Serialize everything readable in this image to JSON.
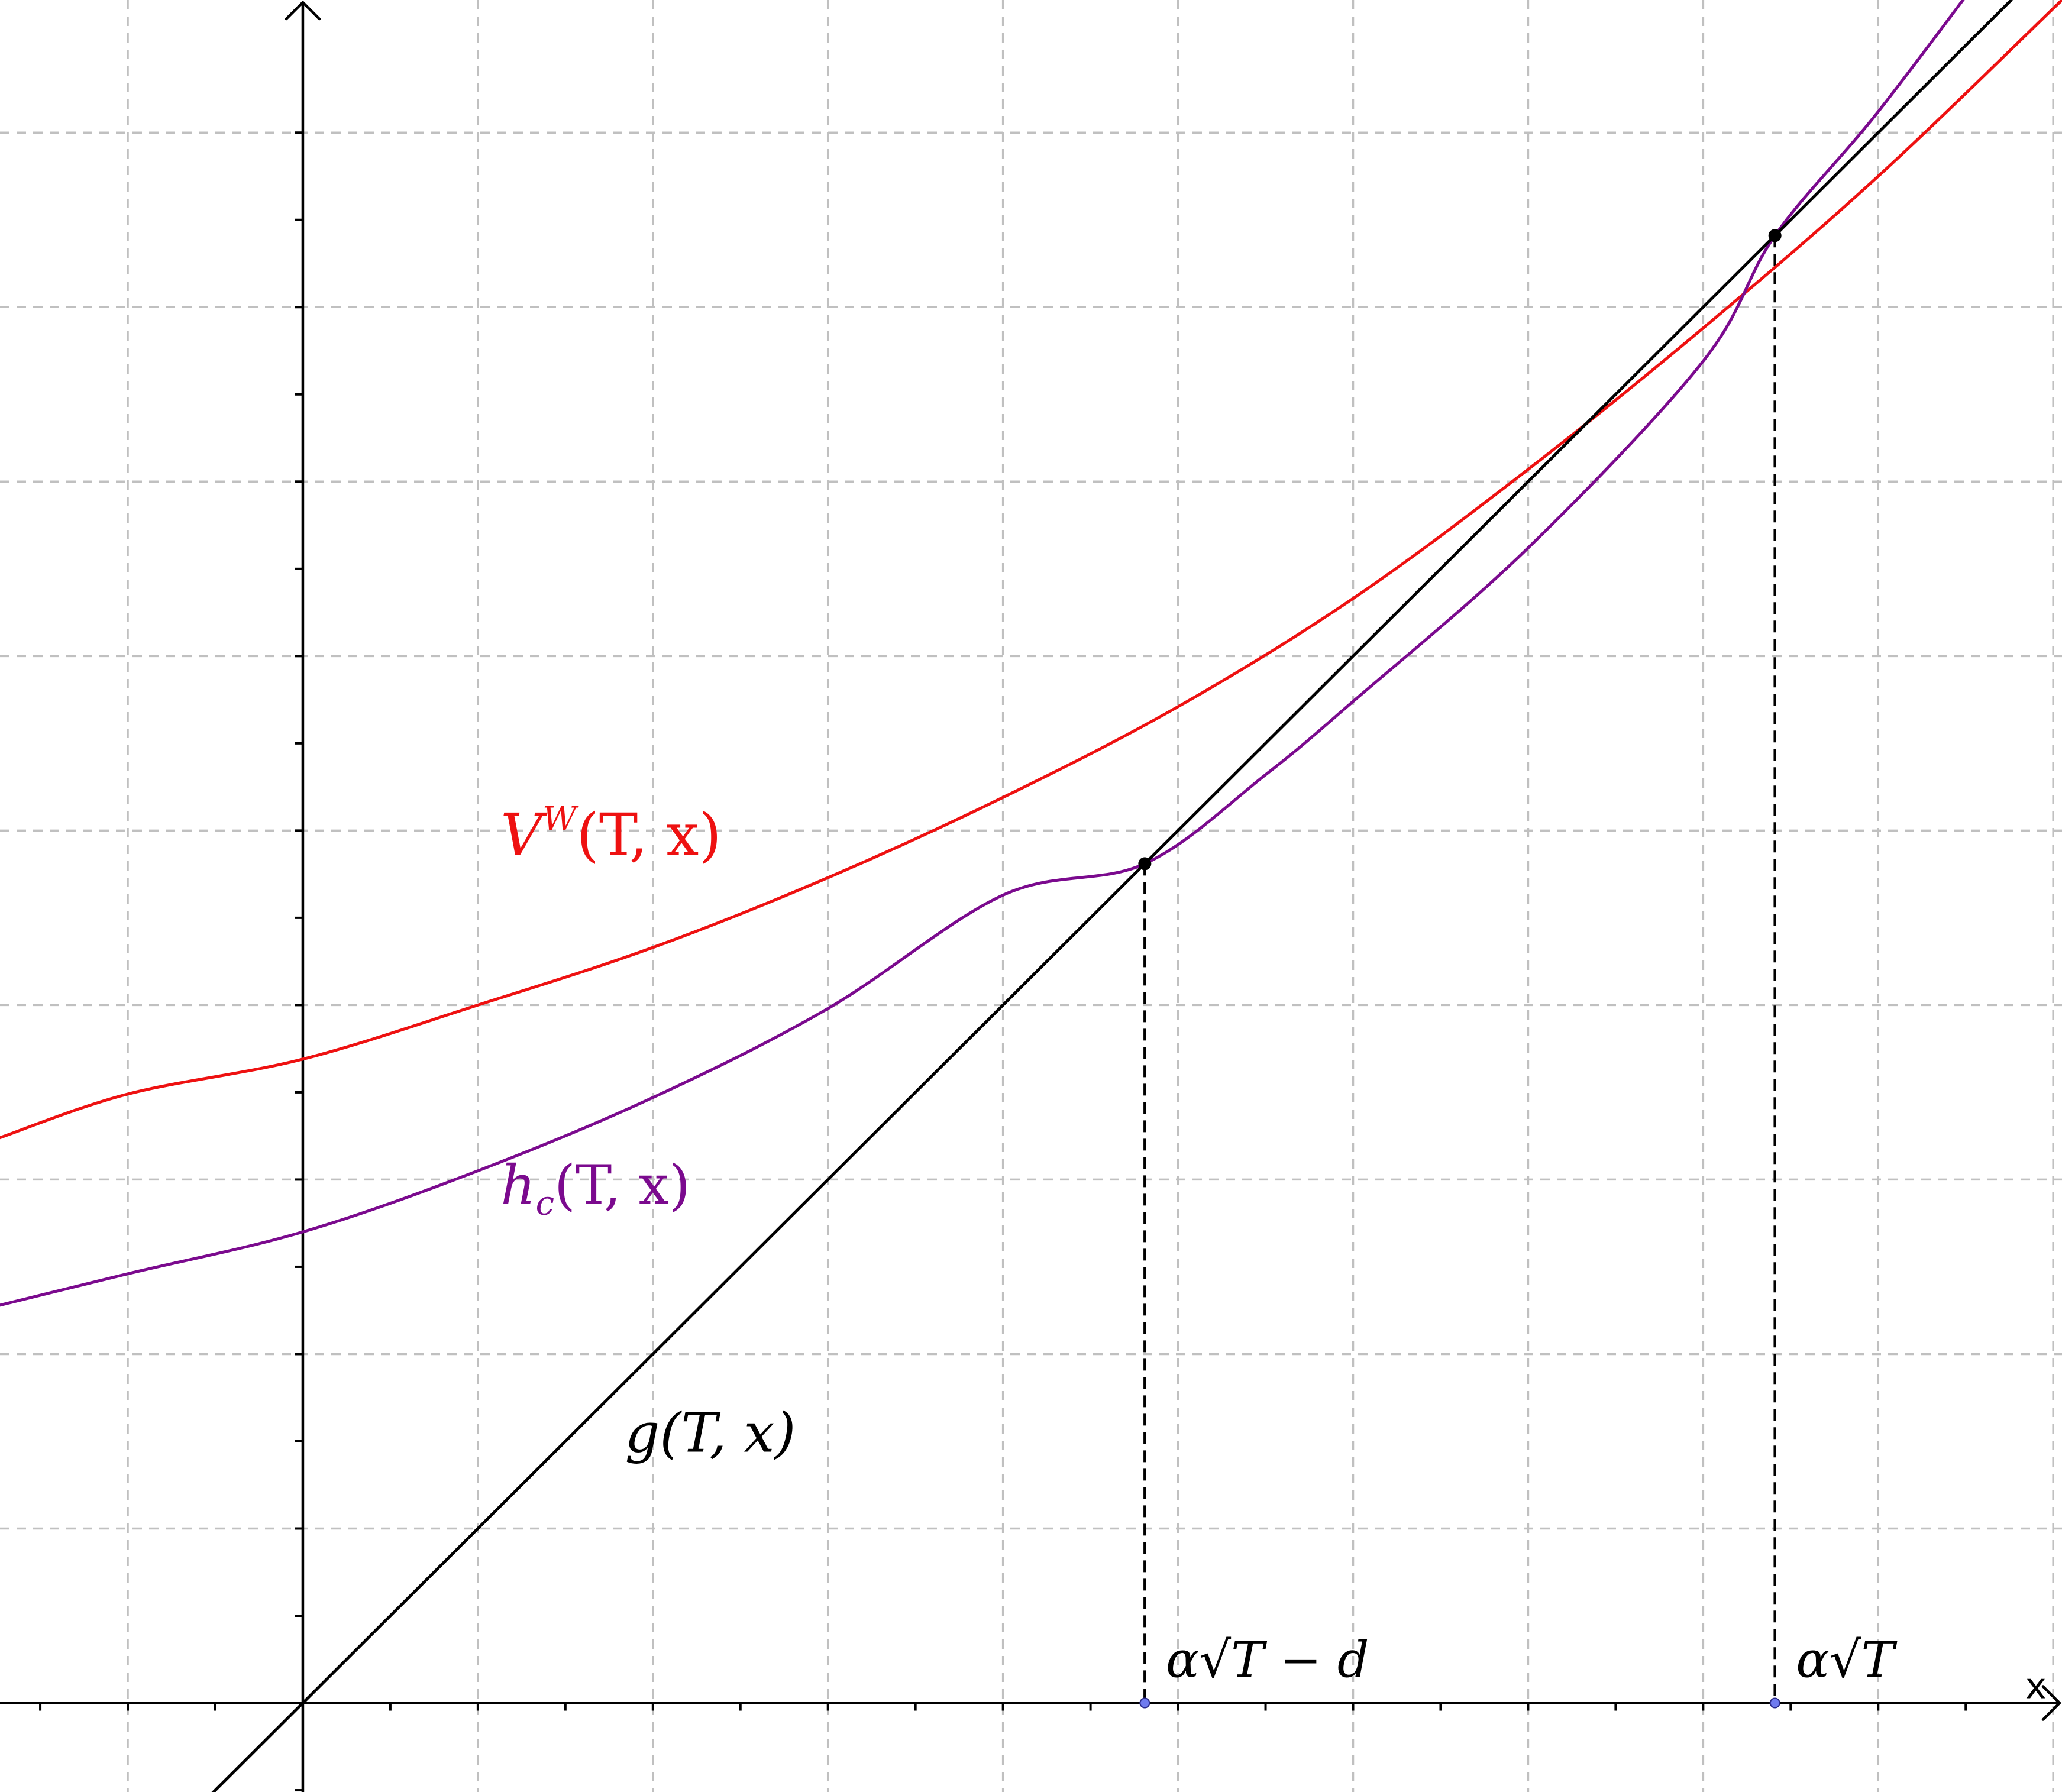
{
  "chart_data": {
    "type": "line",
    "title": "",
    "xlabel": "x",
    "ylabel": "",
    "xlim": [
      -1.73,
      10.05
    ],
    "ylim": [
      -0.51,
      9.76
    ],
    "grid": true,
    "grid_step": 1,
    "minor_tick_step": 0.5,
    "series": [
      {
        "name": "V^W(T, x)",
        "color": "#ee1111",
        "x": [
          -1.73,
          -1,
          0,
          1,
          2,
          3,
          4,
          5,
          6,
          7,
          8,
          9,
          10.05
        ],
        "y": [
          3.24,
          3.49,
          3.69,
          4.0,
          4.33,
          4.73,
          5.19,
          5.71,
          6.33,
          7.07,
          7.88,
          8.75,
          9.76
        ]
      },
      {
        "name": "h_c(T, x)",
        "color": "#7b0a8e",
        "x": [
          -1.73,
          -1,
          0,
          1,
          2,
          3,
          4,
          4.81,
          5.5,
          6,
          7,
          8,
          8.41,
          9,
          9.7
        ],
        "y": [
          2.28,
          2.46,
          2.7,
          3.05,
          3.47,
          3.98,
          4.63,
          4.81,
          5.32,
          5.74,
          6.62,
          7.69,
          8.41,
          9.12,
          10.05
        ]
      },
      {
        "name": "g(T, x)",
        "color": "#000000",
        "x": [
          -0.53,
          9.76
        ],
        "y": [
          -0.53,
          9.76
        ]
      }
    ],
    "points": [
      {
        "x": 4.81,
        "y": 4.81
      },
      {
        "x": 8.41,
        "y": 8.41
      }
    ],
    "x_marks": [
      {
        "x": 4.81,
        "label": "α√T − d"
      },
      {
        "x": 8.41,
        "label": "α√T"
      }
    ]
  },
  "labels": {
    "vw": {
      "base": "V",
      "sup": "W",
      "args": "(T, x)"
    },
    "hc": {
      "base": "h",
      "sub": "c",
      "args": "(T, x)"
    },
    "g": {
      "text": "g(T, x)"
    },
    "tick_alpha_minus_d": "α√T − d",
    "tick_alpha": "α√T",
    "x_axis_name": "x"
  },
  "colors": {
    "vw": "#ee1111",
    "hc": "#7b0a8e",
    "g": "#000000",
    "grid": "#c0c0c0",
    "axis_point": "#6f7bef"
  }
}
